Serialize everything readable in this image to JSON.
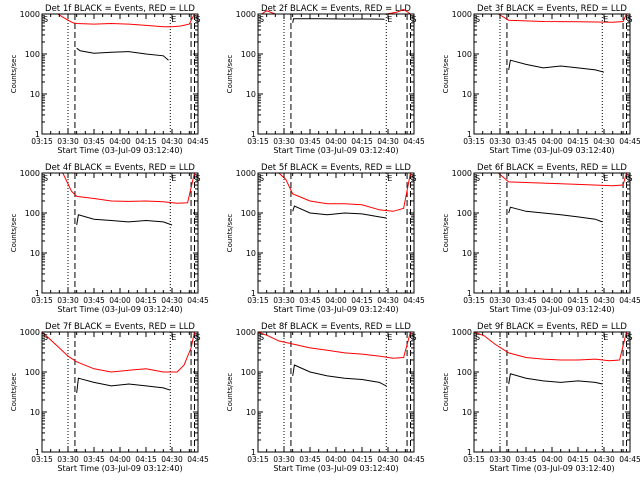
{
  "figure": {
    "xlabel": "Start Time (03-Jul-09 03:12:40)",
    "ylabel": "Counts/sec",
    "x_ticks": [
      "03:15",
      "03:30",
      "03:45",
      "04:00",
      "04:15",
      "04:30",
      "04:45"
    ],
    "y_ticks": [
      "1",
      "10",
      "100",
      "1000"
    ],
    "marker_s": "S",
    "marker_e": "E",
    "colors": {
      "events": "#000000",
      "lld": "#ff0000",
      "axes": "#000000",
      "background": "#ffffff"
    }
  },
  "chart_data": [
    {
      "type": "line",
      "title": "Det 1f BLACK = Events, RED = LLD",
      "x_unit": "minutes after 03:15",
      "xlim": [
        0,
        90
      ],
      "ylim": [
        1,
        1000
      ],
      "y_scale": "log",
      "dotted_lines": [
        15,
        74
      ],
      "dashed_lines": [
        19,
        86,
        88
      ],
      "series": [
        {
          "name": "Events",
          "color": "#000000",
          "x": [
            20,
            22,
            30,
            40,
            50,
            60,
            70,
            73
          ],
          "y": [
            140,
            120,
            105,
            110,
            115,
            100,
            90,
            70
          ]
        },
        {
          "name": "LLD",
          "color": "#ff0000",
          "x": [
            0,
            9,
            15,
            18,
            20,
            30,
            40,
            50,
            60,
            70,
            75,
            80,
            85,
            88
          ],
          "y": [
            1000,
            1000,
            700,
            600,
            580,
            560,
            580,
            560,
            520,
            480,
            480,
            500,
            560,
            1000
          ]
        }
      ]
    },
    {
      "type": "line",
      "title": "Det 2f BLACK = Events, RED = LLD",
      "x_unit": "minutes after 03:15",
      "xlim": [
        0,
        90
      ],
      "ylim": [
        1,
        1000
      ],
      "y_scale": "log",
      "dotted_lines": [
        15,
        74
      ],
      "dashed_lines": [
        19,
        86,
        88
      ],
      "series": [
        {
          "name": "Events",
          "color": "#000000",
          "x": [
            20,
            20.5,
            35,
            50,
            65,
            73
          ],
          "y": [
            600,
            760,
            760,
            750,
            750,
            740
          ]
        },
        {
          "name": "LLD",
          "color": "#ff0000",
          "x": [
            0,
            2,
            5,
            10,
            20,
            40,
            60,
            74,
            80,
            84,
            88
          ],
          "y": [
            1000,
            1000,
            1200,
            1000,
            1000,
            1000,
            1000,
            1000,
            1100,
            1300,
            1000
          ]
        }
      ]
    },
    {
      "type": "line",
      "title": "Det 3f BLACK = Events, RED = LLD",
      "x_unit": "minutes after 03:15",
      "xlim": [
        0,
        90
      ],
      "ylim": [
        1,
        1000
      ],
      "y_scale": "log",
      "dotted_lines": [
        15,
        74
      ],
      "dashed_lines": [
        19,
        86,
        88
      ],
      "series": [
        {
          "name": "Events",
          "color": "#000000",
          "x": [
            20,
            21,
            30,
            40,
            50,
            60,
            70,
            75
          ],
          "y": [
            40,
            70,
            55,
            45,
            50,
            45,
            40,
            35
          ]
        },
        {
          "name": "LLD",
          "color": "#ff0000",
          "x": [
            0,
            14,
            20,
            40,
            60,
            80,
            86,
            88
          ],
          "y": [
            1000,
            1000,
            700,
            650,
            640,
            620,
            650,
            1000
          ]
        }
      ]
    },
    {
      "type": "line",
      "title": "Det 4f BLACK = Events, RED = LLD",
      "x_unit": "minutes after 03:15",
      "xlim": [
        0,
        90
      ],
      "ylim": [
        1,
        1000
      ],
      "y_scale": "log",
      "dotted_lines": [
        15,
        74
      ],
      "dashed_lines": [
        19,
        86,
        88
      ],
      "series": [
        {
          "name": "Events",
          "color": "#000000",
          "x": [
            20,
            21,
            30,
            40,
            50,
            60,
            70,
            75
          ],
          "y": [
            50,
            90,
            70,
            65,
            60,
            65,
            60,
            50
          ]
        },
        {
          "name": "LLD",
          "color": "#ff0000",
          "x": [
            0,
            12,
            17,
            20,
            30,
            40,
            50,
            60,
            70,
            78,
            84,
            88
          ],
          "y": [
            1000,
            1000,
            350,
            260,
            230,
            200,
            195,
            200,
            190,
            175,
            180,
            1000
          ]
        }
      ]
    },
    {
      "type": "line",
      "title": "Det 5f BLACK = Events, RED = LLD",
      "x_unit": "minutes after 03:15",
      "xlim": [
        0,
        90
      ],
      "ylim": [
        1,
        1000
      ],
      "y_scale": "log",
      "dotted_lines": [
        15,
        74
      ],
      "dashed_lines": [
        19,
        86,
        88
      ],
      "series": [
        {
          "name": "Events",
          "color": "#000000",
          "x": [
            20,
            21,
            30,
            40,
            50,
            60,
            70,
            74
          ],
          "y": [
            110,
            150,
            100,
            90,
            100,
            95,
            80,
            75
          ]
        },
        {
          "name": "LLD",
          "color": "#ff0000",
          "x": [
            0,
            12,
            16,
            20,
            30,
            40,
            50,
            60,
            70,
            78,
            84,
            88
          ],
          "y": [
            1000,
            1000,
            700,
            300,
            200,
            170,
            170,
            160,
            120,
            110,
            130,
            1000
          ]
        }
      ]
    },
    {
      "type": "line",
      "title": "Det 6f BLACK = Events, RED = LLD",
      "x_unit": "minutes after 03:15",
      "xlim": [
        0,
        90
      ],
      "ylim": [
        1,
        1000
      ],
      "y_scale": "log",
      "dotted_lines": [
        15,
        74
      ],
      "dashed_lines": [
        19,
        86,
        88
      ],
      "series": [
        {
          "name": "Events",
          "color": "#000000",
          "x": [
            20,
            21,
            30,
            40,
            50,
            60,
            70,
            74
          ],
          "y": [
            100,
            140,
            110,
            100,
            90,
            80,
            70,
            60
          ]
        },
        {
          "name": "LLD",
          "color": "#ff0000",
          "x": [
            0,
            14,
            20,
            40,
            60,
            80,
            86,
            88
          ],
          "y": [
            1000,
            1000,
            600,
            560,
            520,
            480,
            500,
            1000
          ]
        }
      ]
    },
    {
      "type": "line",
      "title": "Det 7f BLACK = Events, RED = LLD",
      "x_unit": "minutes after 03:15",
      "xlim": [
        0,
        90
      ],
      "ylim": [
        1,
        1000
      ],
      "y_scale": "log",
      "dotted_lines": [
        15,
        74
      ],
      "dashed_lines": [
        19,
        86,
        88
      ],
      "series": [
        {
          "name": "Events",
          "color": "#000000",
          "x": [
            20,
            21,
            30,
            40,
            50,
            60,
            70,
            74
          ],
          "y": [
            30,
            70,
            55,
            45,
            50,
            45,
            40,
            35
          ]
        },
        {
          "name": "LLD",
          "color": "#ff0000",
          "x": [
            0,
            4,
            10,
            15,
            20,
            30,
            40,
            50,
            60,
            70,
            78,
            82,
            86,
            88
          ],
          "y": [
            1000,
            700,
            400,
            250,
            180,
            120,
            100,
            110,
            120,
            100,
            100,
            150,
            400,
            1000
          ]
        }
      ]
    },
    {
      "type": "line",
      "title": "Det 8f BLACK = Events, RED = LLD",
      "x_unit": "minutes after 03:15",
      "xlim": [
        0,
        90
      ],
      "ylim": [
        1,
        1000
      ],
      "y_scale": "log",
      "dotted_lines": [
        15,
        74
      ],
      "dashed_lines": [
        19,
        86,
        88
      ],
      "series": [
        {
          "name": "Events",
          "color": "#000000",
          "x": [
            20,
            21,
            30,
            40,
            50,
            60,
            70,
            74
          ],
          "y": [
            80,
            150,
            100,
            80,
            70,
            65,
            55,
            45
          ]
        },
        {
          "name": "LLD",
          "color": "#ff0000",
          "x": [
            0,
            6,
            12,
            20,
            30,
            40,
            50,
            60,
            70,
            78,
            84,
            88
          ],
          "y": [
            1000,
            800,
            600,
            500,
            400,
            350,
            300,
            280,
            250,
            220,
            230,
            1000
          ]
        }
      ]
    },
    {
      "type": "line",
      "title": "Det 9f BLACK = Events, RED = LLD",
      "x_unit": "minutes after 03:15",
      "xlim": [
        0,
        90
      ],
      "ylim": [
        1,
        1000
      ],
      "y_scale": "log",
      "dotted_lines": [
        15,
        74
      ],
      "dashed_lines": [
        19,
        86,
        88
      ],
      "series": [
        {
          "name": "Events",
          "color": "#000000",
          "x": [
            20,
            21,
            30,
            40,
            50,
            60,
            70,
            74
          ],
          "y": [
            50,
            90,
            70,
            60,
            55,
            60,
            55,
            50
          ]
        },
        {
          "name": "LLD",
          "color": "#ff0000",
          "x": [
            0,
            6,
            12,
            20,
            30,
            40,
            50,
            60,
            70,
            78,
            84,
            88
          ],
          "y": [
            1000,
            800,
            500,
            300,
            230,
            210,
            200,
            200,
            210,
            190,
            200,
            1000
          ]
        }
      ]
    }
  ]
}
